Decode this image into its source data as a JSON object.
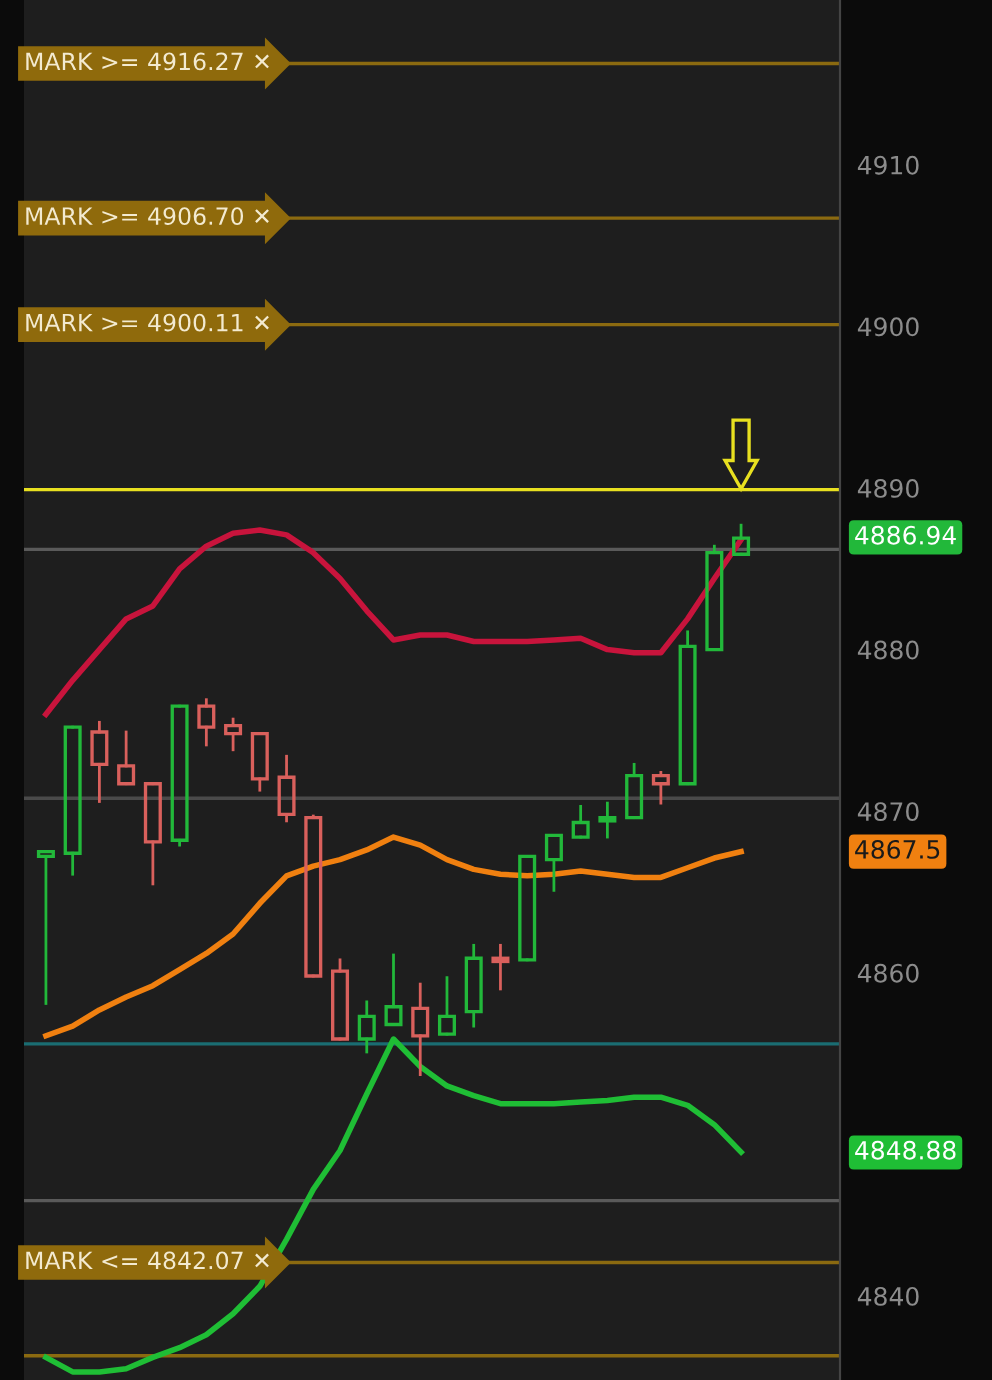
{
  "chart_data": {
    "type": "candlestick",
    "categories": [
      null,
      null,
      null,
      null,
      null,
      null,
      null,
      null,
      null,
      null,
      null,
      null,
      null,
      null,
      null,
      null,
      null,
      null,
      null,
      null,
      null,
      null,
      null,
      null,
      null,
      null,
      null
    ],
    "ohlc": [
      [
        4867.2,
        4867.5,
        4858.1,
        4867.5
      ],
      [
        4867.4,
        4875.2,
        4866.1,
        4875.2
      ],
      [
        4874.9,
        4875.5,
        4870.6,
        4872.9
      ],
      [
        4872.8,
        4874.9,
        4871.7,
        4871.7
      ],
      [
        4871.7,
        4871.7,
        4865.5,
        4868.1
      ],
      [
        4868.2,
        4876.5,
        4867.9,
        4876.5
      ],
      [
        4876.5,
        4876.9,
        4874.1,
        4875.2
      ],
      [
        4875.3,
        4875.7,
        4873.8,
        4874.8
      ],
      [
        4874.8,
        4874.8,
        4871.3,
        4872.0
      ],
      [
        4872.1,
        4873.4,
        4869.4,
        4869.8
      ],
      [
        4869.6,
        4869.7,
        4859.8,
        4859.8
      ],
      [
        4860.1,
        4860.8,
        4855.9,
        4855.9
      ],
      [
        4855.9,
        4858.2,
        4855.1,
        4857.3
      ],
      [
        4856.8,
        4861.1,
        4856.8,
        4857.9
      ],
      [
        4857.8,
        4859.3,
        4853.7,
        4856.1
      ],
      [
        4856.2,
        4859.7,
        4856.2,
        4857.3
      ],
      [
        4857.6,
        4861.7,
        4856.7,
        4860.9
      ],
      [
        4860.9,
        4861.7,
        4859.0,
        4860.7
      ],
      [
        4860.8,
        4867.2,
        4860.8,
        4867.2
      ],
      [
        4867.0,
        4868.5,
        4865.1,
        4868.5
      ],
      [
        4868.4,
        4870.3,
        4868.4,
        4869.3
      ],
      [
        4869.4,
        4870.5,
        4868.4,
        4869.6
      ],
      [
        4869.6,
        4872.9,
        4869.6,
        4872.2
      ],
      [
        4872.2,
        4872.4,
        4870.5,
        4871.7
      ],
      [
        4871.7,
        4881.1,
        4871.7,
        4880.2
      ],
      [
        4880.0,
        4886.4,
        4880.0,
        4886.0
      ],
      [
        4885.9,
        4887.7,
        4885.9,
        4886.9
      ]
    ],
    "colors": [
      "#22b83a",
      "#22b83a",
      "#d9605c",
      "#d9605c",
      "#d9605c",
      "#22b83a",
      "#d9605c",
      "#d9605c",
      "#d9605c",
      "#d9605c",
      "#d9605c",
      "#d9605c",
      "#22b83a",
      "#22b83a",
      "#d9605c",
      "#22b83a",
      "#22b83a",
      "#d9605c",
      "#22b83a",
      "#22b83a",
      "#22b83a",
      "#22b83a",
      "#22b83a",
      "#d9605c",
      "#22b83a",
      "#22b83a",
      "#22b83a"
    ],
    "series": [
      {
        "type": "line",
        "color": "#c8143c",
        "values": [
          4876.0,
          4878.1,
          4880.0,
          4881.9,
          4882.7,
          4885.0,
          4886.4,
          4887.2,
          4887.4,
          4887.1,
          4886.0,
          4884.4,
          4882.4,
          4880.6,
          4880.9,
          4880.9,
          4880.5,
          4880.5,
          4880.5,
          4880.6,
          4880.7,
          4880.0,
          4879.8,
          4879.8,
          4881.9,
          4884.4,
          4886.8
        ]
      },
      {
        "type": "line",
        "color": "#f08010",
        "values": [
          4856.1,
          4856.7,
          4857.7,
          4858.5,
          4859.2,
          4860.2,
          4861.2,
          4862.4,
          4864.3,
          4866.0,
          4866.6,
          4867.0,
          4867.6,
          4868.4,
          4867.9,
          4867.0,
          4866.4,
          4866.1,
          4866.0,
          4866.1,
          4866.3,
          4866.1,
          4865.9,
          4865.9,
          4866.5,
          4867.1,
          4867.5
        ]
      },
      {
        "type": "line",
        "color": "#1fbe35",
        "values": [
          4836.2,
          4835.3,
          4835.3,
          4835.5,
          4836.2,
          4836.8,
          4837.6,
          4838.9,
          4840.6,
          4843.5,
          4846.6,
          4849.0,
          4852.5,
          4855.9,
          4854.2,
          4853.0,
          4852.4,
          4851.9,
          4851.9,
          4851.9,
          4852.0,
          4852.1,
          4852.3,
          4852.3,
          4851.8,
          4850.6,
          4848.9
        ]
      }
    ],
    "ylim": [
      4834.8,
      4920.2
    ],
    "yticks": [
      4840,
      4860,
      4870,
      4880,
      4890,
      4900,
      4910
    ],
    "ref_lines": [
      {
        "axis": "y",
        "value": 4916.27,
        "label": "MARK >= 4916.27 ✕",
        "color": "#8b6a10"
      },
      {
        "axis": "y",
        "value": 4906.7,
        "label": "MARK >= 4906.70 ✕",
        "color": "#8b6a10"
      },
      {
        "axis": "y",
        "value": 4900.11,
        "label": "MARK >= 4900.11 ✕",
        "color": "#8b6a10"
      },
      {
        "axis": "y",
        "value": 4889.9,
        "color": "#e8e020"
      },
      {
        "axis": "y",
        "value": 4886.2,
        "color": "#5a5a5a"
      },
      {
        "axis": "y",
        "value": 4870.8,
        "color": "#4a4a4a"
      },
      {
        "axis": "y",
        "value": 4855.6,
        "color": "#1a6d72"
      },
      {
        "axis": "y",
        "value": 4845.9,
        "color": "#5a5a5a"
      },
      {
        "axis": "y",
        "value": 4842.07,
        "label": "MARK <= 4842.07 ✕",
        "color": "#8b6a10"
      },
      {
        "axis": "y",
        "value": 4836.3,
        "color": "#8b6a10"
      }
    ],
    "annotations": [
      "4886.94",
      "4867.5",
      "4848.88"
    ],
    "grid": false,
    "tick_labels": "y"
  }
}
